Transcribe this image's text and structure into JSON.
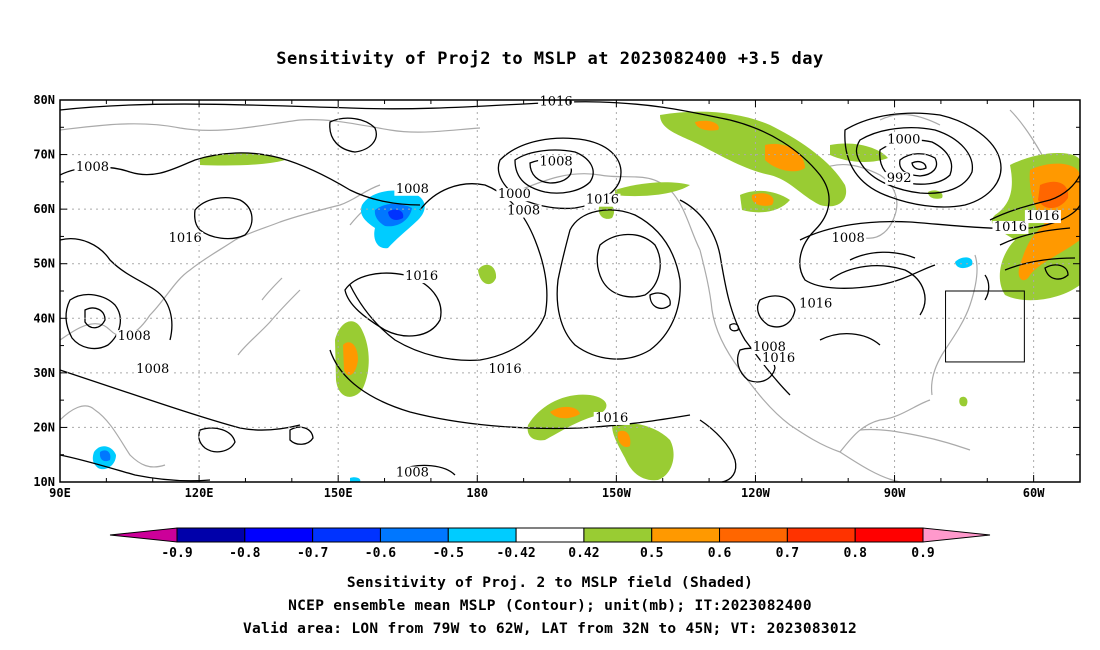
{
  "title": "Sensitivity of Proj2 to MSLP at 2023082400 +3.5 day",
  "axes": {
    "lat_labels": [
      "80N",
      "70N",
      "60N",
      "50N",
      "40N",
      "30N",
      "20N",
      "10N"
    ],
    "lon_labels": [
      "90E",
      "120E",
      "150E",
      "180",
      "150W",
      "120W",
      "90W",
      "60W"
    ]
  },
  "contour_labels": [
    {
      "text": "1016",
      "lon": 197,
      "lat": 79
    },
    {
      "text": "1008",
      "lon": 197,
      "lat": 68
    },
    {
      "text": "1000",
      "lon": 188,
      "lat": 62
    },
    {
      "text": "1008",
      "lon": 190,
      "lat": 59
    },
    {
      "text": "1016",
      "lon": 207,
      "lat": 61
    },
    {
      "text": "1008",
      "lon": 97,
      "lat": 67
    },
    {
      "text": "1016",
      "lon": 117,
      "lat": 54
    },
    {
      "text": "1008",
      "lon": 166,
      "lat": 63
    },
    {
      "text": "1016",
      "lon": 168,
      "lat": 47
    },
    {
      "text": "1008",
      "lon": 106,
      "lat": 36
    },
    {
      "text": "1008",
      "lon": 110,
      "lat": 30
    },
    {
      "text": "1016",
      "lon": 186,
      "lat": 30
    },
    {
      "text": "1016",
      "lon": 209,
      "lat": 21
    },
    {
      "text": "1008",
      "lon": 166,
      "lat": 11
    },
    {
      "text": "1008",
      "lon": 243,
      "lat": 34
    },
    {
      "text": "1016",
      "lon": 245,
      "lat": 32
    },
    {
      "text": "1016",
      "lon": 253,
      "lat": 42
    },
    {
      "text": "1008",
      "lon": 260,
      "lat": 54
    },
    {
      "text": "1000",
      "lon": 272,
      "lat": 72
    },
    {
      "text": "992",
      "lon": 271,
      "lat": 65
    },
    {
      "text": "1016",
      "lon": 295,
      "lat": 56
    },
    {
      "text": "1016",
      "lon": 302,
      "lat": 58
    }
  ],
  "colorbar": {
    "colors": [
      "#cc0099",
      "#0000aa",
      "#0000ff",
      "#0033ff",
      "#0077ff",
      "#00ccff",
      "#ffffff",
      "#99cc33",
      "#ff9900",
      "#ff6600",
      "#ff3300",
      "#ff0000",
      "#ff99cc"
    ],
    "labels": [
      "-0.9",
      "-0.8",
      "-0.7",
      "-0.6",
      "-0.5",
      "-0.42",
      "0.42",
      "0.5",
      "0.6",
      "0.7",
      "0.8",
      "0.9"
    ]
  },
  "valid_area": {
    "lon_min": 281,
    "lon_max": 298,
    "lat_min": 32,
    "lat_max": 45
  },
  "captions": [
    "Sensitivity of Proj. 2 to MSLP field (Shaded)",
    "NCEP ensemble mean MSLP (Contour); unit(mb); IT:2023082400",
    "Valid area: LON from 79W to 62W, LAT from 32N to 45N; VT: 2023083012"
  ]
}
